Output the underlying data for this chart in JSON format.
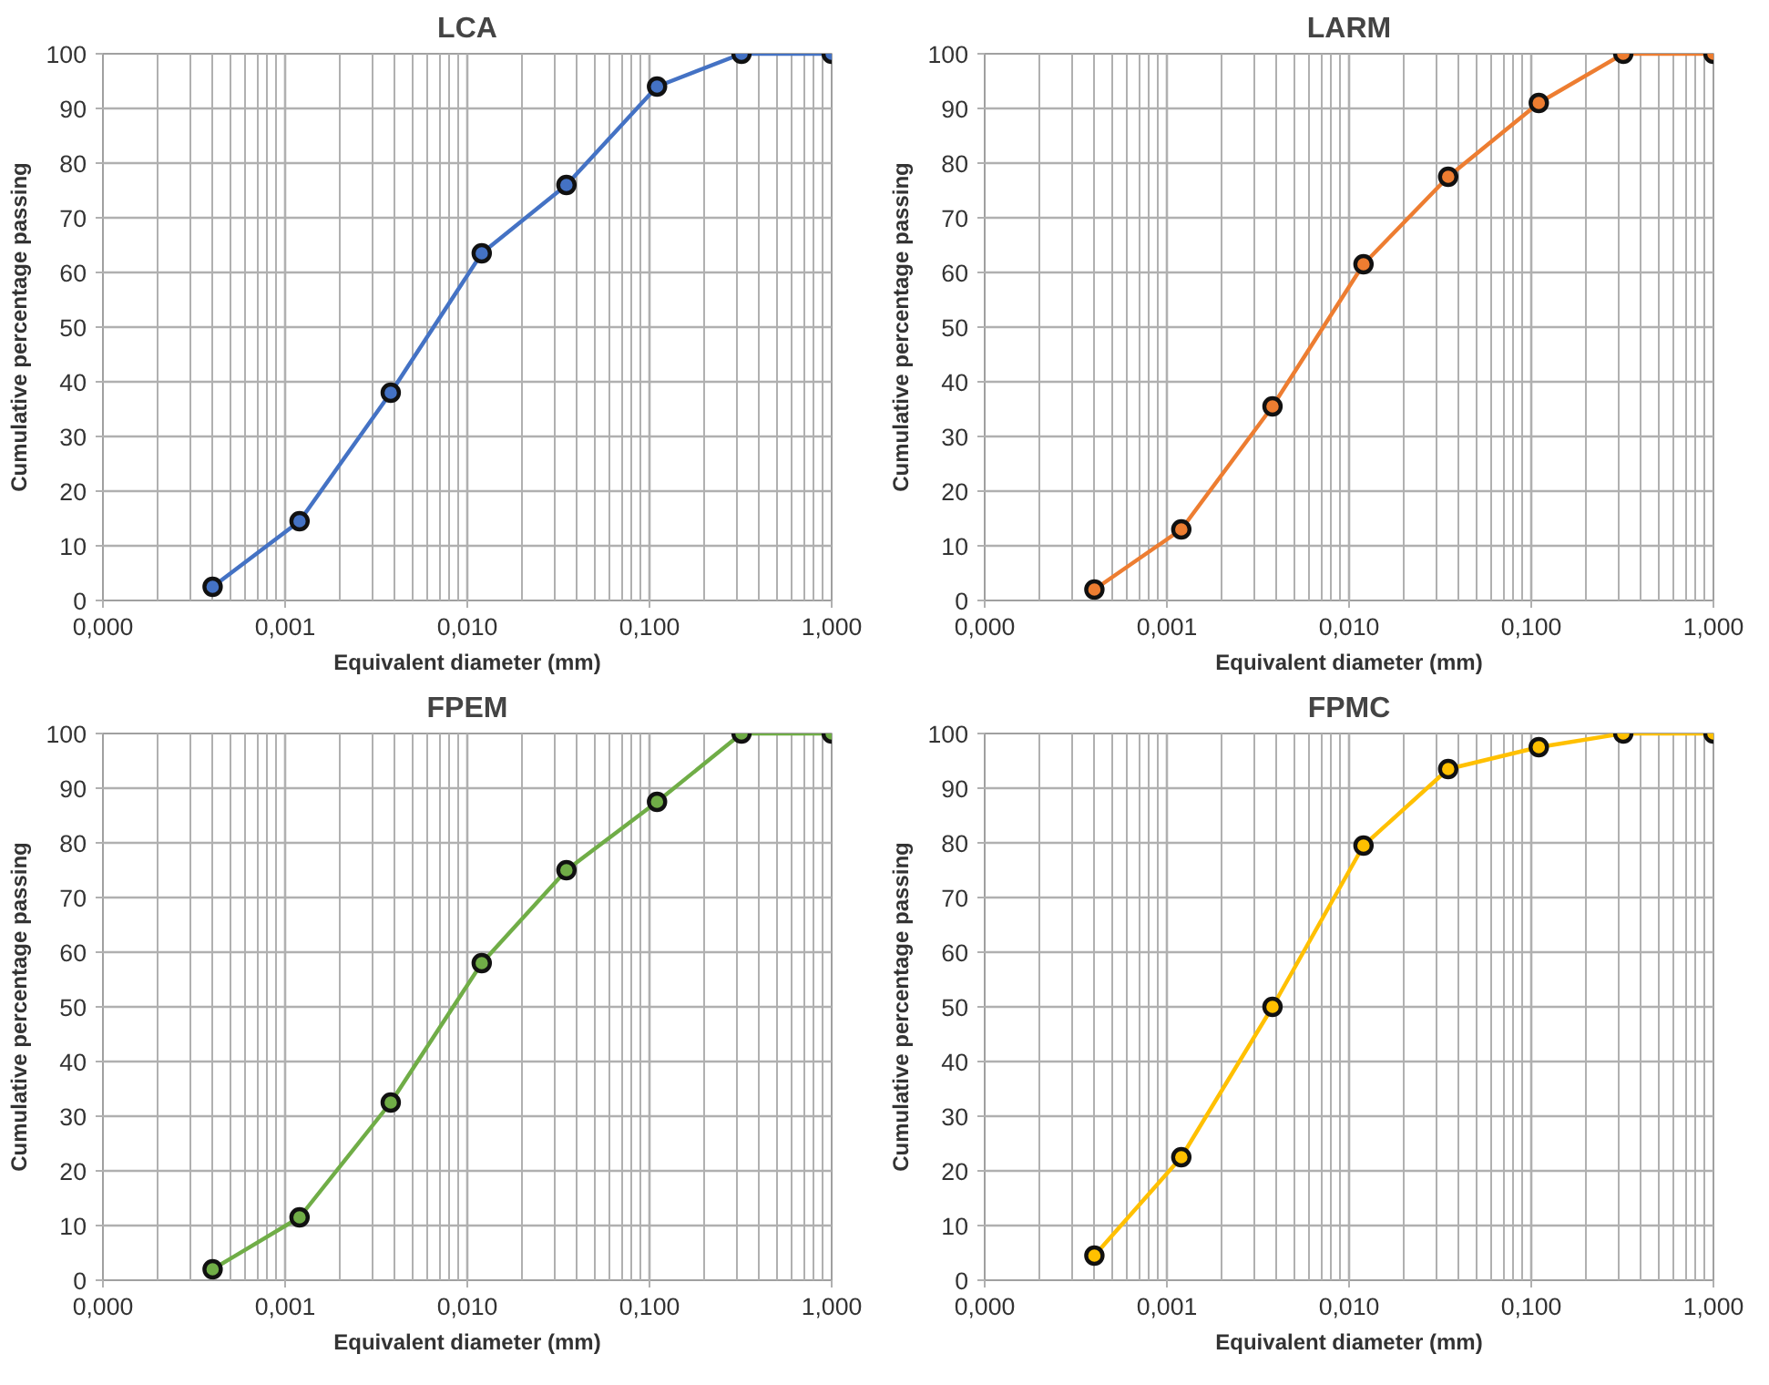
{
  "chart_data": [
    {
      "type": "line",
      "title": "LCA",
      "xlabel": "Equivalent diameter (mm)",
      "ylabel": "Cumulative percentage passing",
      "log": "x",
      "grid": true,
      "marker": "circle",
      "xlim": [
        0.0001,
        1
      ],
      "xticks": [
        {
          "value": 0.0001,
          "label": "0,000"
        },
        {
          "value": 0.001,
          "label": "0,001"
        },
        {
          "value": 0.01,
          "label": "0,010"
        },
        {
          "value": 0.1,
          "label": "0,100"
        },
        {
          "value": 1,
          "label": "1,000"
        }
      ],
      "ylim": [
        0,
        100
      ],
      "yticks": [
        0,
        10,
        20,
        30,
        40,
        50,
        60,
        70,
        80,
        90,
        100
      ],
      "x": [
        0.0004,
        0.0012,
        0.0038,
        0.012,
        0.035,
        0.11,
        0.32,
        1.0
      ],
      "series": [
        {
          "color": "#4472c4",
          "values": [
            2.5,
            14.5,
            38,
            63.5,
            76,
            94,
            100,
            100
          ]
        }
      ]
    },
    {
      "type": "line",
      "title": "LARM",
      "xlabel": "Equivalent diameter (mm)",
      "ylabel": "Cumulative percentage passing",
      "log": "x",
      "grid": true,
      "marker": "circle",
      "xlim": [
        0.0001,
        1
      ],
      "xticks": [
        {
          "value": 0.0001,
          "label": "0,000"
        },
        {
          "value": 0.001,
          "label": "0,001"
        },
        {
          "value": 0.01,
          "label": "0,010"
        },
        {
          "value": 0.1,
          "label": "0,100"
        },
        {
          "value": 1,
          "label": "1,000"
        }
      ],
      "ylim": [
        0,
        100
      ],
      "yticks": [
        0,
        10,
        20,
        30,
        40,
        50,
        60,
        70,
        80,
        90,
        100
      ],
      "x": [
        0.0004,
        0.0012,
        0.0038,
        0.012,
        0.035,
        0.11,
        0.32,
        1.0
      ],
      "series": [
        {
          "color": "#ed7d31",
          "values": [
            2,
            13,
            35.5,
            61.5,
            77.5,
            91,
            100,
            100
          ]
        }
      ]
    },
    {
      "type": "line",
      "title": "FPEM",
      "xlabel": "Equivalent diameter (mm)",
      "ylabel": "Cumulative percentage passing",
      "log": "x",
      "grid": true,
      "marker": "circle",
      "xlim": [
        0.0001,
        1
      ],
      "xticks": [
        {
          "value": 0.0001,
          "label": "0,000"
        },
        {
          "value": 0.001,
          "label": "0,001"
        },
        {
          "value": 0.01,
          "label": "0,010"
        },
        {
          "value": 0.1,
          "label": "0,100"
        },
        {
          "value": 1,
          "label": "1,000"
        }
      ],
      "ylim": [
        0,
        100
      ],
      "yticks": [
        0,
        10,
        20,
        30,
        40,
        50,
        60,
        70,
        80,
        90,
        100
      ],
      "x": [
        0.0004,
        0.0012,
        0.0038,
        0.012,
        0.035,
        0.11,
        0.32,
        1.0
      ],
      "series": [
        {
          "color": "#70ad47",
          "values": [
            2,
            11.5,
            32.5,
            58,
            75,
            87.5,
            100,
            100
          ]
        }
      ]
    },
    {
      "type": "line",
      "title": "FPMC",
      "xlabel": "Equivalent diameter (mm)",
      "ylabel": "Cumulative percentage passing",
      "log": "x",
      "grid": true,
      "marker": "circle",
      "xlim": [
        0.0001,
        1
      ],
      "xticks": [
        {
          "value": 0.0001,
          "label": "0,000"
        },
        {
          "value": 0.001,
          "label": "0,001"
        },
        {
          "value": 0.01,
          "label": "0,010"
        },
        {
          "value": 0.1,
          "label": "0,100"
        },
        {
          "value": 1,
          "label": "1,000"
        }
      ],
      "ylim": [
        0,
        100
      ],
      "yticks": [
        0,
        10,
        20,
        30,
        40,
        50,
        60,
        70,
        80,
        90,
        100
      ],
      "x": [
        0.0004,
        0.0012,
        0.0038,
        0.012,
        0.035,
        0.11,
        0.32,
        1.0
      ],
      "series": [
        {
          "color": "#ffc000",
          "values": [
            4.5,
            22.5,
            50,
            79.5,
            93.5,
            97.5,
            100,
            100
          ]
        }
      ]
    }
  ]
}
